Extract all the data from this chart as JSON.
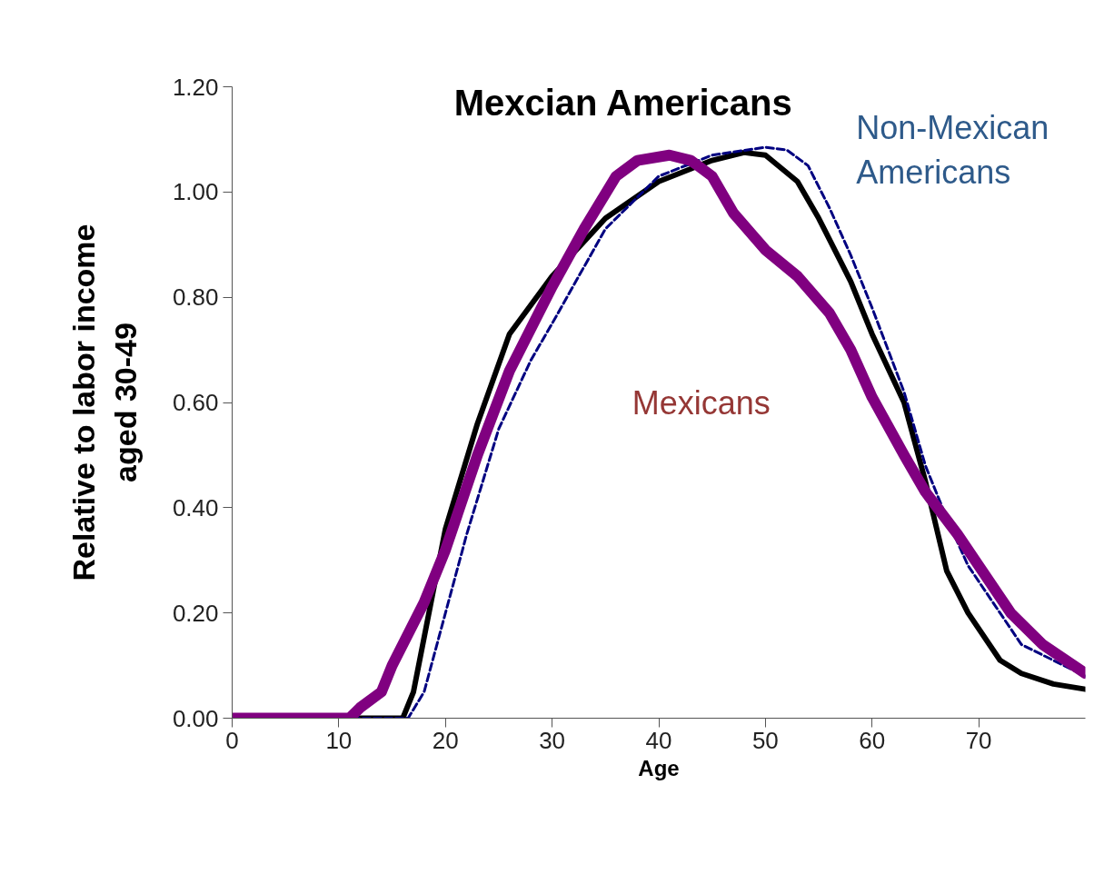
{
  "chart_data": {
    "type": "line",
    "xlabel": "Age",
    "ylabel": "Relative to labor income\naged 30-49",
    "xlim": [
      0,
      80
    ],
    "ylim": [
      0,
      1.2
    ],
    "xticks": [
      0,
      10,
      20,
      30,
      40,
      50,
      60,
      70
    ],
    "yticks": [
      {
        "value": 0,
        "label": "0.00"
      },
      {
        "value": 0.2,
        "label": "0.20"
      },
      {
        "value": 0.4,
        "label": "0.40"
      },
      {
        "value": 0.6,
        "label": "0.60"
      },
      {
        "value": 0.8,
        "label": "0.80"
      },
      {
        "value": 1.0,
        "label": "1.00"
      },
      {
        "value": 1.2,
        "label": "1.20"
      }
    ],
    "grid": false,
    "series": [
      {
        "name": "Mexcian Americans",
        "color": "#000000",
        "line_style": "solid",
        "x": [
          0,
          10,
          16,
          17,
          20,
          23,
          26,
          30,
          35,
          40,
          45,
          48,
          50,
          53,
          55,
          58,
          60,
          63,
          65,
          67,
          69,
          72,
          74,
          77,
          80
        ],
        "values": [
          0,
          0,
          0,
          0.05,
          0.36,
          0.56,
          0.73,
          0.84,
          0.95,
          1.02,
          1.06,
          1.075,
          1.07,
          1.02,
          0.95,
          0.83,
          0.73,
          0.6,
          0.45,
          0.28,
          0.2,
          0.11,
          0.085,
          0.065,
          0.055
        ]
      },
      {
        "name": "Non-Mexican Americans",
        "color": "#000080",
        "line_style": "dashed",
        "x": [
          0,
          10,
          16.5,
          18,
          20,
          22,
          25,
          28,
          30,
          35,
          40,
          45,
          50,
          52,
          54,
          56,
          58,
          60,
          63,
          65,
          67,
          69,
          72,
          74,
          77,
          80
        ],
        "values": [
          0,
          0,
          0,
          0.05,
          0.2,
          0.35,
          0.55,
          0.68,
          0.75,
          0.93,
          1.03,
          1.07,
          1.085,
          1.08,
          1.05,
          0.97,
          0.88,
          0.78,
          0.62,
          0.48,
          0.38,
          0.29,
          0.2,
          0.14,
          0.11,
          0.08
        ]
      },
      {
        "name": "Mexicans",
        "color": "#800080",
        "line_style": "solid",
        "x": [
          0,
          11,
          12,
          14,
          15,
          18,
          20,
          23,
          26,
          30,
          33,
          36,
          38,
          41,
          43,
          45,
          47,
          50,
          53,
          56,
          58,
          60,
          63,
          65,
          68,
          70,
          73,
          76,
          80
        ],
        "values": [
          0,
          0,
          0.02,
          0.05,
          0.1,
          0.22,
          0.32,
          0.5,
          0.66,
          0.82,
          0.93,
          1.03,
          1.06,
          1.07,
          1.06,
          1.03,
          0.96,
          0.89,
          0.84,
          0.77,
          0.7,
          0.61,
          0.5,
          0.43,
          0.35,
          0.29,
          0.2,
          0.14,
          0.085
        ]
      }
    ]
  }
}
